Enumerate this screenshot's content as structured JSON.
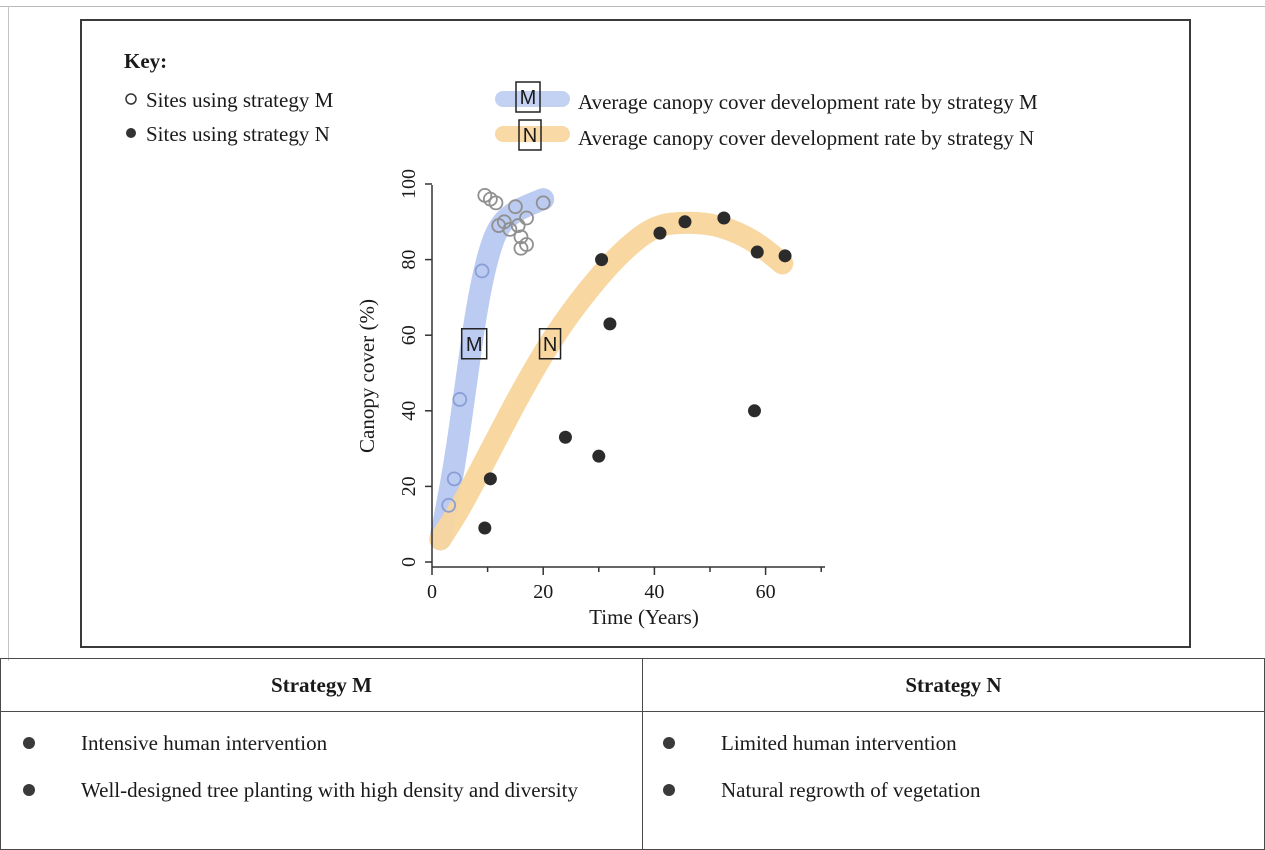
{
  "key": {
    "title": "Key:",
    "sites_m": "Sites using strategy M",
    "sites_n": "Sites using strategy N",
    "rate_m": "Average canopy cover development rate by strategy M",
    "rate_n": "Average canopy cover development rate by strategy N",
    "box_m": "M",
    "box_n": "N"
  },
  "chart_data": {
    "type": "scatter",
    "xlabel": "Time (Years)",
    "ylabel": "Canopy cover (%)",
    "xlim": [
      0,
      70
    ],
    "ylim": [
      0,
      100
    ],
    "x_ticks": [
      0,
      20,
      40,
      60
    ],
    "y_ticks": [
      0,
      20,
      40,
      60,
      80,
      100
    ],
    "series": [
      {
        "name": "Sites using strategy M",
        "marker": "open-circle",
        "points": [
          [
            3,
            15
          ],
          [
            4,
            22
          ],
          [
            5,
            43
          ],
          [
            9,
            77
          ],
          [
            9.5,
            97
          ],
          [
            10.5,
            96
          ],
          [
            11.5,
            95
          ],
          [
            12,
            89
          ],
          [
            13,
            90
          ],
          [
            14,
            88
          ],
          [
            15,
            94
          ],
          [
            15.5,
            89
          ],
          [
            16,
            86
          ],
          [
            16,
            83
          ],
          [
            17,
            84
          ],
          [
            17,
            91
          ],
          [
            20,
            95
          ]
        ]
      },
      {
        "name": "Sites using strategy N",
        "marker": "filled-circle",
        "points": [
          [
            9.5,
            9
          ],
          [
            10.5,
            22
          ],
          [
            24,
            33
          ],
          [
            30,
            28
          ],
          [
            30.5,
            80
          ],
          [
            32,
            63
          ],
          [
            41,
            87
          ],
          [
            45.5,
            90
          ],
          [
            52.5,
            91
          ],
          [
            58,
            40
          ],
          [
            58.5,
            82
          ],
          [
            63.5,
            81
          ]
        ]
      }
    ],
    "trend_bands": [
      {
        "name": "Average canopy cover development rate by strategy M",
        "color": "#b8c8f0",
        "points": [
          [
            1.5,
            6
          ],
          [
            4,
            25
          ],
          [
            6,
            46
          ],
          [
            8,
            67
          ],
          [
            10,
            81
          ],
          [
            12,
            89
          ],
          [
            15,
            93
          ],
          [
            20,
            96
          ]
        ]
      },
      {
        "name": "Average canopy cover development rate by strategy N",
        "color": "#f8d59c",
        "points": [
          [
            1.5,
            6
          ],
          [
            5,
            14
          ],
          [
            10,
            28
          ],
          [
            16,
            45
          ],
          [
            22,
            60
          ],
          [
            28,
            72
          ],
          [
            34,
            82
          ],
          [
            40,
            89
          ],
          [
            46,
            90
          ],
          [
            52,
            89
          ],
          [
            58,
            85
          ],
          [
            63,
            79
          ]
        ]
      }
    ],
    "annotations": [
      {
        "label": "M",
        "x": 7.5,
        "y": 58
      },
      {
        "label": "N",
        "x": 21.5,
        "y": 58
      }
    ],
    "colors": {
      "m_markers": "#8a9fd6",
      "m_markers_late": "#909090",
      "n_markers": "#2b2b2b"
    }
  },
  "table": {
    "header_m": "Strategy M",
    "header_n": "Strategy N",
    "m_items": [
      "Intensive human intervention",
      "Well-designed tree planting with high density and diversity"
    ],
    "n_items": [
      "Limited human intervention",
      "Natural regrowth of vegetation"
    ]
  }
}
